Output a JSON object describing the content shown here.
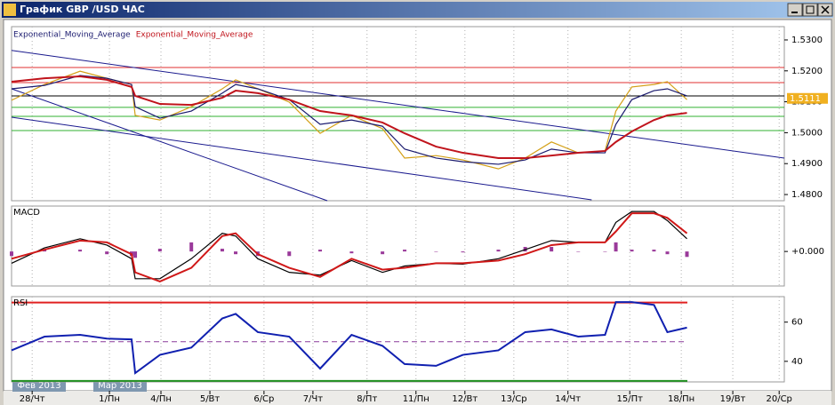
{
  "window": {
    "title": "График GBP /USD ЧАС",
    "period_labels": [
      "Фев 2013",
      "Мар 2013"
    ]
  },
  "chart_data": [
    {
      "type": "line",
      "x": [
        0,
        0.64,
        1.33,
        1.85,
        2.33,
        2.4,
        2.88,
        3.49,
        4.09,
        4.35,
        4.78,
        5.39,
        5.99,
        6.6,
        7.2,
        7.63,
        8.24,
        8.76,
        9.45,
        9.97,
        10.48,
        11.0,
        11.52,
        11.73,
        12.04,
        12.47,
        12.73,
        13.11
      ],
      "xlim": [
        0,
        15
      ],
      "ylim": [
        1.478,
        1.5343
      ],
      "yticks": [
        {
          "value": 1.53,
          "label": "1.5300"
        },
        {
          "value": 1.52,
          "label": "1.5200"
        },
        {
          "value": 1.51,
          "label": "1.5100"
        },
        {
          "value": 1.5,
          "label": "1.5000"
        },
        {
          "value": 1.49,
          "label": "1.4900"
        },
        {
          "value": 1.48,
          "label": "1.4800"
        }
      ],
      "last_price": 1.5111,
      "series": [
        {
          "color": "#d4a017",
          "values": [
            1.5105,
            1.5156,
            1.5199,
            1.5176,
            1.5156,
            1.5056,
            1.5041,
            1.5084,
            1.5142,
            1.5171,
            1.5142,
            1.5099,
            1.4998,
            1.5056,
            1.5013,
            1.4918,
            1.4926,
            1.4912,
            1.4883,
            1.4918,
            1.497,
            1.4935,
            1.4941,
            1.507,
            1.5148,
            1.5156,
            1.5165,
            1.5107
          ]
        },
        {
          "name": "Exponential_Moving_Average",
          "color": "#1a1a6e",
          "values": [
            1.5142,
            1.5153,
            1.5185,
            1.5176,
            1.5156,
            1.5084,
            1.5047,
            1.507,
            1.5128,
            1.5156,
            1.5142,
            1.5107,
            1.5027,
            1.5041,
            1.5021,
            1.4947,
            1.4918,
            1.4906,
            1.4898,
            1.4912,
            1.4947,
            1.4935,
            1.4935,
            1.5027,
            1.5107,
            1.5136,
            1.5142,
            1.5119
          ]
        },
        {
          "name": "Exponential_Moving_Average",
          "color": "#c0141c",
          "values": [
            1.5165,
            1.5176,
            1.5182,
            1.5171,
            1.5148,
            1.5119,
            1.5093,
            1.509,
            1.5113,
            1.5136,
            1.5128,
            1.5107,
            1.507,
            1.5056,
            1.5033,
            1.4998,
            1.4955,
            1.4935,
            1.4918,
            1.4918,
            1.4926,
            1.4935,
            1.4941,
            1.497,
            1.5004,
            1.5041,
            1.5056,
            1.5064
          ]
        }
      ],
      "hlines": [
        {
          "value": 1.5211,
          "color": "#e03030"
        },
        {
          "value": 1.5162,
          "color": "#e03030"
        },
        {
          "value": 1.5119,
          "color": "#000000"
        },
        {
          "value": 1.5082,
          "color": "#30b030"
        },
        {
          "value": 1.5053,
          "color": "#30b030"
        },
        {
          "value": 1.5007,
          "color": "#30b030"
        }
      ],
      "trendlines": [
        {
          "x": [
            0,
            15
          ],
          "y": [
            1.5266,
            1.4918
          ],
          "color": "#1a1a8e"
        },
        {
          "x": [
            0,
            6.13
          ],
          "y": [
            1.5142,
            1.478
          ],
          "color": "#1a1a8e"
        },
        {
          "x": [
            0,
            11.26
          ],
          "y": [
            1.505,
            1.4783
          ],
          "color": "#1a1a8e"
        }
      ]
    },
    {
      "type": "line",
      "title": "MACD",
      "x": [
        0,
        0.64,
        1.33,
        1.85,
        2.33,
        2.4,
        2.88,
        3.49,
        4.09,
        4.35,
        4.78,
        5.39,
        5.99,
        6.6,
        7.2,
        7.63,
        8.24,
        8.76,
        9.45,
        9.97,
        10.48,
        11.0,
        11.52,
        11.73,
        12.04,
        12.47,
        12.73,
        13.11
      ],
      "xlim": [
        0,
        15
      ],
      "ylim": [
        -0.0038,
        0.005
      ],
      "yticks": [
        {
          "value": 0,
          "label": "+0.000"
        }
      ],
      "series": [
        {
          "type": "bar",
          "color": "#9a3a9a",
          "values": [
            -0.0005,
            0.0002,
            0.0002,
            -0.0003,
            -0.0005,
            -0.0007,
            0.0003,
            0.001,
            0.0003,
            -0.0003,
            -0.0005,
            -0.0005,
            0.0002,
            -0.0002,
            -0.0003,
            0.0002,
            0,
            -0.0001,
            0.0002,
            0.0005,
            0.0005,
            0,
            0,
            0.001,
            0.0002,
            0.0002,
            -0.0003,
            -0.0006
          ]
        },
        {
          "color": "#000000",
          "values": [
            -0.0013,
            0.0004,
            0.0014,
            0.0007,
            -0.0008,
            -0.003,
            -0.003,
            -0.0008,
            0.002,
            0.0017,
            -0.0008,
            -0.0023,
            -0.0026,
            -0.001,
            -0.0023,
            -0.0016,
            -0.0013,
            -0.0014,
            -0.0008,
            0.0002,
            0.0012,
            0.001,
            0.001,
            0.0032,
            0.0044,
            0.0044,
            0.0034,
            0.0014
          ]
        },
        {
          "color": "#d01818",
          "values": [
            -0.0008,
            0.0002,
            0.0012,
            0.001,
            -0.0003,
            -0.0023,
            -0.0033,
            -0.0018,
            0.0017,
            0.002,
            -0.0003,
            -0.0018,
            -0.0028,
            -0.0008,
            -0.002,
            -0.0018,
            -0.0013,
            -0.0013,
            -0.001,
            -0.0003,
            0.0007,
            0.001,
            0.001,
            0.0022,
            0.0042,
            0.0042,
            0.0037,
            0.002
          ]
        }
      ]
    },
    {
      "type": "line",
      "title": "RSI",
      "x": [
        0,
        0.64,
        1.33,
        1.85,
        2.33,
        2.4,
        2.88,
        3.49,
        4.09,
        4.35,
        4.78,
        5.39,
        5.99,
        6.6,
        7.2,
        7.63,
        8.24,
        8.76,
        9.45,
        9.97,
        10.48,
        11.0,
        11.52,
        11.73,
        12.04,
        12.47,
        12.73,
        13.11
      ],
      "xlim": [
        0,
        15
      ],
      "ylim": [
        29.5,
        73
      ],
      "yticks": [
        60,
        40
      ],
      "xticks": [
        {
          "value": 0.4,
          "label": "28/Чт"
        },
        {
          "value": 1.9,
          "label": "1/Пн"
        },
        {
          "value": 2.9,
          "label": "4/Пн"
        },
        {
          "value": 3.85,
          "label": "5/Вт"
        },
        {
          "value": 4.9,
          "label": "6/Ср"
        },
        {
          "value": 5.85,
          "label": "7/Чт"
        },
        {
          "value": 6.9,
          "label": "8/Пт"
        },
        {
          "value": 7.85,
          "label": "11/Пн"
        },
        {
          "value": 8.8,
          "label": "12/Вт"
        },
        {
          "value": 9.75,
          "label": "13/Ср"
        },
        {
          "value": 10.8,
          "label": "14/Чт"
        },
        {
          "value": 12.0,
          "label": "15/Пт"
        },
        {
          "value": 13.0,
          "label": "18/Пн"
        },
        {
          "value": 14.0,
          "label": "19/Вт"
        },
        {
          "value": 14.9,
          "label": "20/Ср"
        }
      ],
      "series": [
        {
          "color": "#1020b0",
          "values": [
            45.6,
            52.6,
            53.5,
            51.6,
            51.2,
            34,
            43.3,
            47,
            61.9,
            64.2,
            54.9,
            52.6,
            36.3,
            53.5,
            47.9,
            38.6,
            37.7,
            43.3,
            45.6,
            54.9,
            56.3,
            52.6,
            53.5,
            70.2,
            70.2,
            68.8,
            54.9,
            57.2
          ]
        }
      ],
      "hlines": [
        {
          "value": 70,
          "color": "#e02020"
        },
        {
          "value": 50,
          "color": "#8a3a9a",
          "dash": true
        },
        {
          "value": 30,
          "color": "#209020"
        }
      ]
    }
  ]
}
